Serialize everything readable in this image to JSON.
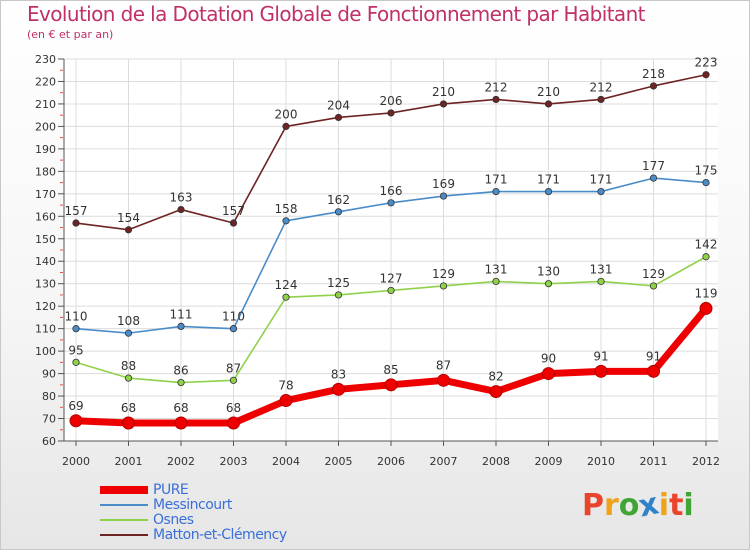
{
  "title": "Evolution de la Dotation Globale de Fonctionnement par Habitant",
  "subtitle": "(en € et par an)",
  "brand": {
    "text": "Proxiti",
    "letter_colors": [
      "#e8452c",
      "#f0a21a",
      "#3fa535",
      "#2f82c7",
      "#f0a21a",
      "#e8452c",
      "#3fa535"
    ]
  },
  "chart_data": {
    "type": "line",
    "title": "Evolution de la Dotation Globale de Fonctionnement par Habitant",
    "subtitle": "(en € et par an)",
    "xlabel": "",
    "ylabel": "",
    "x": [
      "2000",
      "2001",
      "2002",
      "2003",
      "2004",
      "2005",
      "2006",
      "2007",
      "2008",
      "2009",
      "2010",
      "2011",
      "2012"
    ],
    "ylim": [
      60,
      230
    ],
    "yticks": [
      60,
      70,
      80,
      90,
      100,
      110,
      120,
      130,
      140,
      150,
      160,
      170,
      180,
      190,
      200,
      210,
      220,
      230
    ],
    "grid": true,
    "legend_position": "bottom-left",
    "series": [
      {
        "name": "PURE",
        "color": "#ee0000",
        "values": [
          69,
          68,
          68,
          68,
          78,
          83,
          85,
          87,
          82,
          90,
          91,
          91,
          119
        ]
      },
      {
        "name": "Messincourt",
        "color": "#4a8cc8",
        "values": [
          110,
          108,
          111,
          110,
          158,
          162,
          166,
          169,
          171,
          171,
          171,
          177,
          175
        ]
      },
      {
        "name": "Osnes",
        "color": "#8fd24a",
        "values": [
          95,
          88,
          86,
          87,
          124,
          125,
          127,
          129,
          131,
          130,
          131,
          129,
          142
        ]
      },
      {
        "name": "Matton-et-Clémency",
        "color": "#6e2424",
        "values": [
          157,
          154,
          163,
          157,
          200,
          204,
          206,
          210,
          212,
          210,
          212,
          218,
          223
        ]
      }
    ]
  }
}
